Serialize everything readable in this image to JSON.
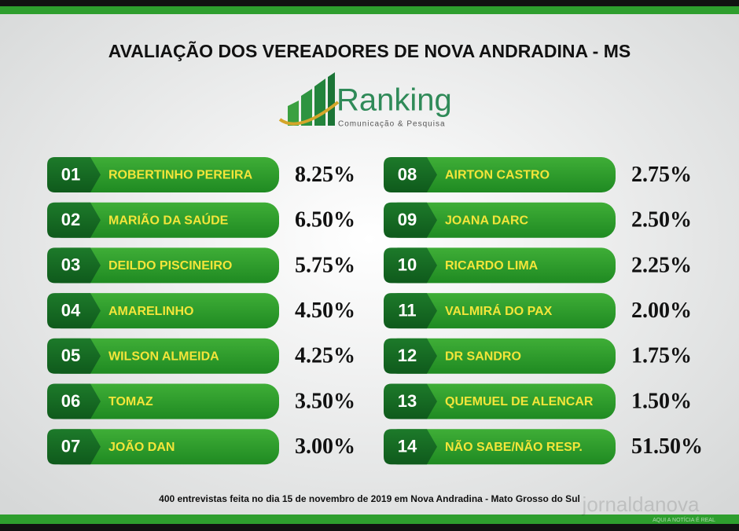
{
  "header": {
    "title": "AVALIAÇÃO DOS VEREADORES DE NOVA ANDRADINA - MS"
  },
  "logo": {
    "name": "Ranking",
    "tagline": "Comunicação & Pesquisa"
  },
  "items": [
    {
      "rank": "01",
      "name": "ROBERTINHO PEREIRA",
      "value": "8.25%"
    },
    {
      "rank": "02",
      "name": "MARIÃO DA SAÚDE",
      "value": "6.50%"
    },
    {
      "rank": "03",
      "name": "DEILDO PISCINEIRO",
      "value": "5.75%"
    },
    {
      "rank": "04",
      "name": "AMARELINHO",
      "value": "4.50%"
    },
    {
      "rank": "05",
      "name": "WILSON ALMEIDA",
      "value": "4.25%"
    },
    {
      "rank": "06",
      "name": "TOMAZ",
      "value": "3.50%"
    },
    {
      "rank": "07",
      "name": "JOÃO DAN",
      "value": "3.00%"
    },
    {
      "rank": "08",
      "name": "AIRTON CASTRO",
      "value": "2.75%"
    },
    {
      "rank": "09",
      "name": "JOANA DARC",
      "value": "2.50%"
    },
    {
      "rank": "10",
      "name": "RICARDO LIMA",
      "value": "2.25%"
    },
    {
      "rank": "11",
      "name": "VALMIRÁ DO PAX",
      "value": "2.00%"
    },
    {
      "rank": "12",
      "name": "DR SANDRO",
      "value": "1.75%"
    },
    {
      "rank": "13",
      "name": "QUEMUEL DE ALENCAR",
      "value": "1.50%"
    },
    {
      "rank": "14",
      "name": "NÃO SABE/NÃO RESP.",
      "value": "51.50%"
    }
  ],
  "footer": {
    "note": "400 entrevistas feita no dia 15 de novembro de 2019 em Nova Andradina - Mato Grosso do Sul",
    "watermark": "jornaldanova",
    "watermark_tagline": "AQUI A NOTÍCIA É REAL"
  }
}
